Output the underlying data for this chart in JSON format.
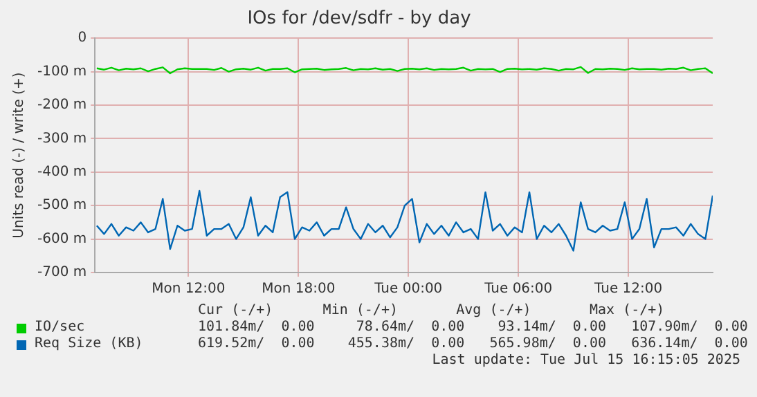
{
  "chart_data": {
    "type": "line",
    "title": "IOs for /dev/sdfr - by day",
    "ylabel": "Units read (-) / write (+)",
    "x": [
      "2025-07-14T07:00",
      "2025-07-14T07:24",
      "2025-07-14T07:48",
      "2025-07-14T08:12",
      "2025-07-14T08:36",
      "2025-07-14T09:00",
      "2025-07-14T09:24",
      "2025-07-14T09:48",
      "2025-07-14T10:12",
      "2025-07-14T10:36",
      "2025-07-14T11:00",
      "2025-07-14T11:24",
      "2025-07-14T11:48",
      "2025-07-14T12:12",
      "2025-07-14T12:36",
      "2025-07-14T13:00",
      "2025-07-14T13:24",
      "2025-07-14T13:48",
      "2025-07-14T14:12",
      "2025-07-14T14:36",
      "2025-07-14T15:00",
      "2025-07-14T15:24",
      "2025-07-14T15:48",
      "2025-07-14T16:12",
      "2025-07-14T16:36",
      "2025-07-14T17:00",
      "2025-07-14T17:24",
      "2025-07-14T17:48",
      "2025-07-14T18:12",
      "2025-07-14T18:36",
      "2025-07-14T19:00",
      "2025-07-14T19:24",
      "2025-07-14T19:48",
      "2025-07-14T20:12",
      "2025-07-14T20:36",
      "2025-07-14T21:00",
      "2025-07-14T21:24",
      "2025-07-14T21:48",
      "2025-07-14T22:12",
      "2025-07-14T22:36",
      "2025-07-14T23:00",
      "2025-07-14T23:24",
      "2025-07-14T23:48",
      "2025-07-15T00:12",
      "2025-07-15T00:36",
      "2025-07-15T01:00",
      "2025-07-15T01:24",
      "2025-07-15T01:48",
      "2025-07-15T02:12",
      "2025-07-15T02:36",
      "2025-07-15T03:00",
      "2025-07-15T03:24",
      "2025-07-15T03:48",
      "2025-07-15T04:12",
      "2025-07-15T04:36",
      "2025-07-15T05:00",
      "2025-07-15T05:24",
      "2025-07-15T05:48",
      "2025-07-15T06:12",
      "2025-07-15T06:36",
      "2025-07-15T07:00",
      "2025-07-15T07:24",
      "2025-07-15T07:48",
      "2025-07-15T08:12",
      "2025-07-15T08:36",
      "2025-07-15T09:00",
      "2025-07-15T09:24",
      "2025-07-15T09:48",
      "2025-07-15T10:12",
      "2025-07-15T10:36",
      "2025-07-15T11:00",
      "2025-07-15T11:24",
      "2025-07-15T11:48",
      "2025-07-15T12:12",
      "2025-07-15T12:36",
      "2025-07-15T13:00",
      "2025-07-15T13:24",
      "2025-07-15T13:48",
      "2025-07-15T14:12",
      "2025-07-15T14:36",
      "2025-07-15T15:00",
      "2025-07-15T15:24",
      "2025-07-15T15:48",
      "2025-07-15T16:12",
      "2025-07-15T16:36"
    ],
    "series": [
      {
        "name": "IO/sec",
        "color": "#00cc00",
        "values": [
          -90,
          -94,
          -88,
          -96,
          -91,
          -93,
          -90,
          -99,
          -92,
          -87,
          -105,
          -93,
          -90,
          -92,
          -92,
          -92,
          -95,
          -89,
          -100,
          -93,
          -91,
          -94,
          -88,
          -97,
          -92,
          -92,
          -90,
          -102,
          -93,
          -92,
          -91,
          -95,
          -93,
          -92,
          -89,
          -96,
          -92,
          -93,
          -90,
          -94,
          -92,
          -98,
          -92,
          -91,
          -93,
          -90,
          -95,
          -92,
          -93,
          -92,
          -88,
          -97,
          -92,
          -93,
          -92,
          -101,
          -92,
          -91,
          -93,
          -92,
          -94,
          -90,
          -92,
          -97,
          -92,
          -93,
          -86,
          -104,
          -92,
          -93,
          -91,
          -92,
          -95,
          -90,
          -93,
          -92,
          -92,
          -94,
          -91,
          -92,
          -88,
          -96,
          -92,
          -90,
          -105
        ]
      },
      {
        "name": "Req Size (KB)",
        "color": "#0066b3",
        "values": [
          -560,
          -585,
          -555,
          -590,
          -565,
          -575,
          -550,
          -580,
          -570,
          -480,
          -630,
          -560,
          -575,
          -570,
          -456,
          -590,
          -570,
          -570,
          -555,
          -600,
          -565,
          -475,
          -590,
          -560,
          -580,
          -475,
          -460,
          -600,
          -565,
          -575,
          -550,
          -590,
          -570,
          -570,
          -505,
          -570,
          -600,
          -555,
          -580,
          -560,
          -595,
          -565,
          -500,
          -480,
          -610,
          -555,
          -585,
          -560,
          -590,
          -550,
          -580,
          -570,
          -600,
          -460,
          -575,
          -555,
          -590,
          -565,
          -580,
          -460,
          -600,
          -560,
          -580,
          -555,
          -590,
          -635,
          -490,
          -570,
          -580,
          -560,
          -575,
          -570,
          -490,
          -600,
          -570,
          -480,
          -625,
          -570,
          -570,
          -565,
          -590,
          -555,
          -585,
          -600,
          -470
        ]
      }
    ],
    "xlim": [
      "2025-07-14T06:54",
      "2025-07-15T16:36"
    ],
    "xticks": [
      {
        "value": "2025-07-14T12:00",
        "label": "Mon 12:00"
      },
      {
        "value": "2025-07-14T18:00",
        "label": "Mon 18:00"
      },
      {
        "value": "2025-07-15T00:00",
        "label": "Tue 00:00"
      },
      {
        "value": "2025-07-15T06:00",
        "label": "Tue 06:00"
      },
      {
        "value": "2025-07-15T12:00",
        "label": "Tue 12:00"
      }
    ],
    "ylim": [
      -700,
      0
    ],
    "yticks": [
      {
        "value": -700,
        "label": "-700 m"
      },
      {
        "value": -600,
        "label": "-600 m"
      },
      {
        "value": -500,
        "label": "-500 m"
      },
      {
        "value": -400,
        "label": "-400 m"
      },
      {
        "value": -300,
        "label": "-300 m"
      },
      {
        "value": -200,
        "label": "-200 m"
      },
      {
        "value": -100,
        "label": "-100 m"
      },
      0
    ],
    "grid": true,
    "legend": "bottom",
    "marker": "none",
    "line_style": "solid",
    "annotations": [
      "Cur (-/+)      Min (-/+)       Avg (-/+)       Max (-/+)",
      "101.84m/  0.00     78.64m/  0.00    93.14m/  0.00   107.90m/  0.00",
      "619.52m/  0.00    455.38m/  0.00   565.98m/  0.00   636.14m/  0.00",
      "Last update: Tue Jul 15 16:15:05 2025"
    ]
  }
}
